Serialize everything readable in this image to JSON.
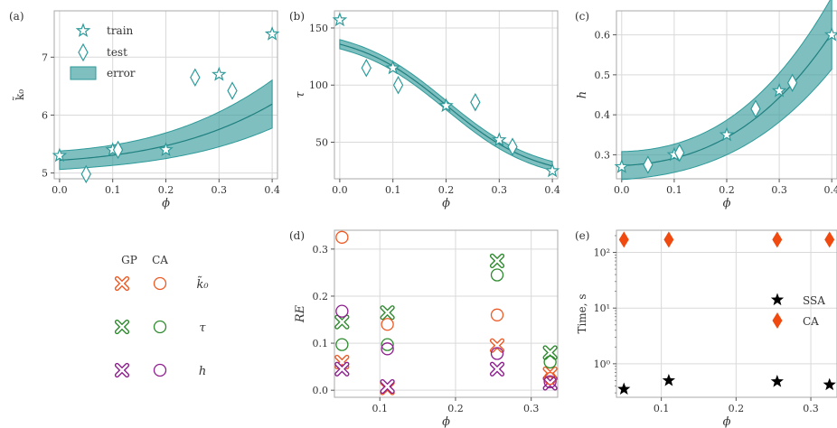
{
  "colors": {
    "teal": "#2e9a9a",
    "band": "#3a9c9c",
    "k0": "#ee5a24",
    "tau": "#2e8b2e",
    "h": "#8e1e8e",
    "ssa": "#000000",
    "ca": "#f04a10"
  },
  "legend_markers": {
    "gp_header": "GP",
    "ca_header": "CA",
    "rows": [
      {
        "label": "k̃₀",
        "color_key": "k0"
      },
      {
        "label": "τ",
        "color_key": "tau"
      },
      {
        "label": "h",
        "color_key": "h"
      }
    ]
  },
  "chart_data": [
    {
      "panel": "(a)",
      "type": "line",
      "xlabel": "ϕ",
      "ylabel": "k̃₀",
      "xlim": [
        -0.01,
        0.41
      ],
      "ylim": [
        4.9,
        7.8
      ],
      "xticks": [
        0.0,
        0.1,
        0.2,
        0.3,
        0.4
      ],
      "xticklabels": [
        "0.0",
        "0.1",
        "0.2",
        "0.3",
        "0.4"
      ],
      "yticks": [
        5,
        6,
        7
      ],
      "yticklabels": [
        "5",
        "6",
        "7"
      ],
      "grid": true,
      "legend_position": "top-left",
      "legend": [
        "train",
        "test",
        "error"
      ],
      "train": {
        "x": [
          0.0,
          0.1,
          0.2,
          0.3,
          0.4
        ],
        "y": [
          5.3,
          5.4,
          5.4,
          6.7,
          7.4
        ]
      },
      "test": {
        "x": [
          0.05,
          0.11,
          0.255,
          0.325
        ],
        "y": [
          4.98,
          5.4,
          6.65,
          6.42
        ]
      },
      "mean_coeffs": [
        5.22,
        0.6,
        2.0,
        6.4
      ],
      "band_halfwidth": [
        0.16,
        0.0,
        1.5,
        0.22
      ]
    },
    {
      "panel": "(b)",
      "type": "line",
      "xlabel": "ϕ",
      "ylabel": "τ",
      "xlim": [
        -0.01,
        0.41
      ],
      "ylim": [
        18,
        165
      ],
      "xticks": [
        0.0,
        0.1,
        0.2,
        0.3,
        0.4
      ],
      "xticklabels": [
        "0.0",
        "0.1",
        "0.2",
        "0.3",
        "0.4"
      ],
      "yticks": [
        50,
        100,
        150
      ],
      "yticklabels": [
        "50",
        "100",
        "150"
      ],
      "grid": true,
      "train": {
        "x": [
          0.0,
          0.1,
          0.2,
          0.3,
          0.4
        ],
        "y": [
          157,
          115,
          82,
          52,
          25
        ]
      },
      "test": {
        "x": [
          0.05,
          0.11,
          0.255,
          0.325
        ],
        "y": [
          115,
          100,
          85,
          46
        ]
      },
      "sigmoid": {
        "top": 147,
        "bottom": 18,
        "center": 0.2,
        "scale": 0.085
      },
      "band_halfwidth": 4
    },
    {
      "panel": "(c)",
      "type": "line",
      "xlabel": "ϕ",
      "ylabel": "h",
      "xlim": [
        -0.01,
        0.41
      ],
      "ylim": [
        0.24,
        0.66
      ],
      "xticks": [
        0.0,
        0.1,
        0.2,
        0.3,
        0.4
      ],
      "xticklabels": [
        "0.0",
        "0.1",
        "0.2",
        "0.3",
        "0.4"
      ],
      "yticks": [
        0.3,
        0.4,
        0.5,
        0.6
      ],
      "yticklabels": [
        "0.3",
        "0.4",
        "0.5",
        "0.6"
      ],
      "grid": true,
      "train": {
        "x": [
          0.0,
          0.1,
          0.2,
          0.3,
          0.4
        ],
        "y": [
          0.27,
          0.3,
          0.35,
          0.46,
          0.6
        ]
      },
      "test": {
        "x": [
          0.05,
          0.11,
          0.255,
          0.325
        ],
        "y": [
          0.275,
          0.305,
          0.415,
          0.48
        ]
      },
      "mean_coeffs": [
        0.273,
        0.06,
        1.0,
        2.3
      ],
      "band_halfwidth": [
        0.035,
        -0.03,
        0.3,
        0.3
      ]
    },
    {
      "panel": "(d)",
      "type": "scatter",
      "xlabel": "ϕ",
      "ylabel": "RE",
      "xlim": [
        0.04,
        0.335
      ],
      "ylim": [
        -0.015,
        0.34
      ],
      "xticks": [
        0.1,
        0.2,
        0.3
      ],
      "xticklabels": [
        "0.1",
        "0.2",
        "0.3"
      ],
      "yticks": [
        0.0,
        0.1,
        0.2,
        0.3
      ],
      "yticklabels": [
        "0.0",
        "0.1",
        "0.2",
        "0.3"
      ],
      "grid": true,
      "x": [
        0.05,
        0.11,
        0.255,
        0.325
      ],
      "series": [
        {
          "marker": "x",
          "color_key": "k0",
          "values": [
            0.06,
            0.005,
            0.095,
            0.035
          ]
        },
        {
          "marker": "x",
          "color_key": "tau",
          "values": [
            0.145,
            0.165,
            0.275,
            0.08
          ]
        },
        {
          "marker": "x",
          "color_key": "h",
          "values": [
            0.045,
            0.008,
            0.045,
            0.015
          ]
        },
        {
          "marker": "o",
          "color_key": "k0",
          "values": [
            0.325,
            0.14,
            0.16,
            0.025
          ]
        },
        {
          "marker": "o",
          "color_key": "tau",
          "values": [
            0.097,
            0.097,
            0.245,
            0.06
          ]
        },
        {
          "marker": "o",
          "color_key": "h",
          "values": [
            0.168,
            0.088,
            0.078,
            0.018
          ]
        }
      ]
    },
    {
      "panel": "(e)",
      "type": "scatter",
      "xlabel": "ϕ",
      "ylabel": "Time, s",
      "yscale": "log",
      "xlim": [
        0.04,
        0.335
      ],
      "ylim": [
        0.25,
        250
      ],
      "xticks": [
        0.1,
        0.2,
        0.3
      ],
      "xticklabels": [
        "0.1",
        "0.2",
        "0.3"
      ],
      "yticks": [
        1,
        10,
        100
      ],
      "yticklabels": [
        "10⁰",
        "10¹",
        "10²"
      ],
      "grid": true,
      "legend_position": "center-right",
      "legend": [
        "SSA",
        "CA"
      ],
      "x": [
        0.05,
        0.11,
        0.255,
        0.325
      ],
      "series": [
        {
          "name": "SSA",
          "marker": "star",
          "color_key": "ssa",
          "values": [
            0.35,
            0.5,
            0.48,
            0.42
          ]
        },
        {
          "name": "CA",
          "marker": "diamond",
          "color_key": "ca",
          "values": [
            170,
            170,
            170,
            170
          ]
        }
      ]
    }
  ]
}
